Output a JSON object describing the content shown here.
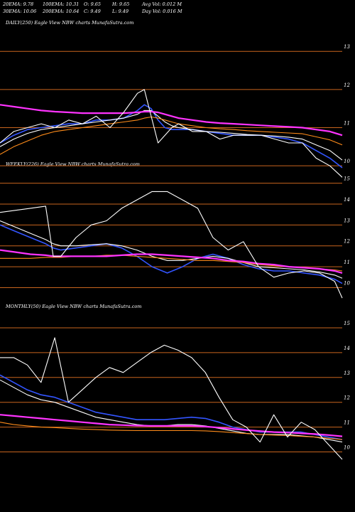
{
  "header": {
    "ema20": "20EMA: 9.78",
    "ema100": "100EMA: 10.31",
    "open": "O: 9.65",
    "high": "H: 9.65",
    "avgvol": "Avg Vol: 0.012  M",
    "ema30": "30EMA: 10.06",
    "ema200": "200EMA: 10.64",
    "close": "C: 9.49",
    "low": "L: 9.49",
    "dayvol": "Day Vol: 0.016  M"
  },
  "colors": {
    "background": "#000000",
    "price": "#ffffff",
    "ema_blue": "#3355ff",
    "ema_magenta": "#ff33ff",
    "ema_orange": "#ff8c1a",
    "gridline": "#c8641e"
  },
  "chart_data": [
    {
      "type": "line",
      "title": "DAILY(250) Eagle  View  NBW charts MunafaSutra.com",
      "yticks": [
        "13",
        "12",
        "11",
        "10"
      ],
      "ylim": [
        9.5,
        13.6
      ],
      "x": [
        0,
        10,
        20,
        30,
        40,
        50,
        60,
        70,
        80,
        90,
        100,
        105,
        110,
        115,
        120,
        125,
        130,
        140,
        150,
        160,
        170,
        180,
        190,
        200,
        210,
        220,
        230,
        240,
        249
      ],
      "series": [
        {
          "name": "price",
          "color": "#ffffff",
          "values": [
            10.6,
            10.9,
            11.0,
            11.1,
            11.0,
            11.2,
            11.1,
            11.3,
            11.0,
            11.4,
            11.9,
            12.0,
            11.3,
            10.6,
            10.8,
            11.0,
            11.1,
            10.9,
            10.9,
            10.7,
            10.8,
            10.8,
            10.8,
            10.7,
            10.6,
            10.6,
            10.2,
            10.0,
            9.7
          ]
        },
        {
          "name": "",
          "color": "#3355ff",
          "values": [
            10.6,
            10.8,
            10.95,
            11.0,
            11.05,
            11.1,
            11.1,
            11.2,
            11.2,
            11.25,
            11.45,
            11.6,
            11.5,
            11.2,
            11.0,
            10.95,
            10.95,
            10.95,
            10.9,
            10.85,
            10.8,
            10.8,
            10.8,
            10.75,
            10.7,
            10.6,
            10.4,
            10.2,
            9.95
          ]
        },
        {
          "name": "",
          "color": "#ffffff",
          "values": [
            10.5,
            10.7,
            10.85,
            10.95,
            11.0,
            11.05,
            11.1,
            11.15,
            11.2,
            11.25,
            11.35,
            11.45,
            11.45,
            11.3,
            11.15,
            11.05,
            11.0,
            10.95,
            10.9,
            10.88,
            10.85,
            10.82,
            10.8,
            10.78,
            10.75,
            10.7,
            10.55,
            10.4,
            10.15
          ]
        },
        {
          "name": "",
          "color": "#ff8c1a",
          "values": [
            10.3,
            10.5,
            10.65,
            10.8,
            10.9,
            10.95,
            11.0,
            11.05,
            11.1,
            11.15,
            11.2,
            11.25,
            11.28,
            11.25,
            11.2,
            11.15,
            11.1,
            11.05,
            11.0,
            10.97,
            10.95,
            10.92,
            10.9,
            10.88,
            10.86,
            10.84,
            10.76,
            10.68,
            10.55
          ]
        },
        {
          "name": "",
          "color": "#ff33ff",
          "values": [
            11.6,
            11.55,
            11.5,
            11.45,
            11.42,
            11.4,
            11.38,
            11.38,
            11.38,
            11.38,
            11.4,
            11.42,
            11.42,
            11.4,
            11.35,
            11.3,
            11.25,
            11.2,
            11.15,
            11.12,
            11.1,
            11.08,
            11.06,
            11.04,
            11.02,
            11.0,
            10.95,
            10.9,
            10.8
          ]
        }
      ]
    },
    {
      "type": "line",
      "title": "WEEKLY(226) Eagle  View  NBW charts MunafaSutra.com",
      "yticks": [
        "15",
        "14",
        "13",
        "12",
        "11",
        "10"
      ],
      "ylim": [
        9.3,
        15.6
      ],
      "x": [
        0,
        10,
        20,
        30,
        35,
        40,
        50,
        60,
        70,
        80,
        90,
        100,
        110,
        120,
        130,
        140,
        150,
        160,
        170,
        180,
        190,
        200,
        210,
        220,
        225
      ],
      "series": [
        {
          "name": "price",
          "color": "#ffffff",
          "values": [
            13.6,
            13.7,
            13.8,
            13.9,
            11.5,
            11.5,
            12.4,
            13.0,
            13.2,
            13.8,
            14.2,
            14.6,
            14.6,
            14.2,
            13.8,
            12.4,
            11.8,
            12.2,
            11.0,
            10.5,
            10.7,
            10.8,
            10.7,
            10.3,
            9.5
          ]
        },
        {
          "name": "",
          "color": "#3355ff",
          "values": [
            13.0,
            12.7,
            12.4,
            12.1,
            11.9,
            11.8,
            11.9,
            12.0,
            12.1,
            11.9,
            11.5,
            11.0,
            10.7,
            11.0,
            11.4,
            11.6,
            11.4,
            11.1,
            10.9,
            10.8,
            10.8,
            10.7,
            10.6,
            10.4,
            10.2
          ]
        },
        {
          "name": "",
          "color": "#ffffff",
          "values": [
            13.2,
            12.9,
            12.6,
            12.3,
            12.1,
            12.0,
            12.0,
            12.05,
            12.1,
            12.0,
            11.8,
            11.5,
            11.3,
            11.3,
            11.4,
            11.5,
            11.4,
            11.2,
            11.0,
            10.95,
            10.9,
            10.85,
            10.75,
            10.6,
            10.45
          ]
        },
        {
          "name": "",
          "color": "#ff8c1a",
          "values": [
            11.4,
            11.4,
            11.4,
            11.45,
            11.45,
            11.45,
            11.5,
            11.5,
            11.55,
            11.55,
            11.5,
            11.45,
            11.4,
            11.35,
            11.3,
            11.3,
            11.25,
            11.2,
            11.1,
            11.05,
            11.0,
            10.95,
            10.9,
            10.85,
            10.8
          ]
        },
        {
          "name": "",
          "color": "#ff33ff",
          "values": [
            11.8,
            11.7,
            11.6,
            11.55,
            11.5,
            11.5,
            11.5,
            11.5,
            11.5,
            11.55,
            11.6,
            11.6,
            11.55,
            11.5,
            11.45,
            11.4,
            11.3,
            11.25,
            11.15,
            11.1,
            11.0,
            10.95,
            10.9,
            10.8,
            10.7
          ]
        }
      ]
    },
    {
      "type": "line",
      "title": "MONTHLY(50) Eagle  View  NBW charts MunafaSutra.com",
      "yticks": [
        "15",
        "14",
        "13",
        "12",
        "11",
        "10"
      ],
      "ylim": [
        9.3,
        15.6
      ],
      "x": [
        0,
        2,
        4,
        6,
        8,
        10,
        12,
        14,
        16,
        18,
        20,
        22,
        24,
        26,
        28,
        30,
        32,
        34,
        36,
        38,
        40,
        42,
        44,
        46,
        48,
        50
      ],
      "series": [
        {
          "name": "price",
          "color": "#ffffff",
          "values": [
            13.8,
            13.8,
            13.5,
            12.8,
            14.6,
            12.0,
            12.5,
            13.0,
            13.4,
            13.2,
            13.6,
            14.0,
            14.3,
            14.1,
            13.8,
            13.2,
            12.2,
            11.3,
            11.0,
            10.4,
            11.5,
            10.6,
            11.2,
            10.9,
            10.3,
            9.7
          ]
        },
        {
          "name": "",
          "color": "#3355ff",
          "values": [
            13.1,
            12.8,
            12.5,
            12.3,
            12.2,
            12.0,
            11.8,
            11.6,
            11.5,
            11.4,
            11.3,
            11.3,
            11.3,
            11.35,
            11.4,
            11.35,
            11.2,
            11.0,
            10.9,
            10.8,
            10.8,
            10.8,
            10.8,
            10.7,
            10.6,
            10.5
          ]
        },
        {
          "name": "",
          "color": "#ffffff",
          "values": [
            12.9,
            12.6,
            12.3,
            12.1,
            12.0,
            11.8,
            11.6,
            11.4,
            11.3,
            11.2,
            11.1,
            11.05,
            11.05,
            11.1,
            11.1,
            11.05,
            10.95,
            10.85,
            10.75,
            10.7,
            10.7,
            10.7,
            10.65,
            10.6,
            10.5,
            10.4
          ]
        },
        {
          "name": "",
          "color": "#ff8c1a",
          "values": [
            11.2,
            11.1,
            11.05,
            11.0,
            10.98,
            10.95,
            10.92,
            10.9,
            10.88,
            10.87,
            10.86,
            10.86,
            10.86,
            10.86,
            10.86,
            10.85,
            10.82,
            10.78,
            10.74,
            10.7,
            10.68,
            10.66,
            10.63,
            10.6,
            10.55,
            10.5
          ]
        },
        {
          "name": "",
          "color": "#ff33ff",
          "values": [
            11.5,
            11.45,
            11.4,
            11.35,
            11.3,
            11.25,
            11.2,
            11.15,
            11.1,
            11.08,
            11.06,
            11.05,
            11.05,
            11.05,
            11.05,
            11.02,
            10.98,
            10.93,
            10.88,
            10.84,
            10.8,
            10.78,
            10.75,
            10.72,
            10.68,
            10.63
          ]
        }
      ]
    }
  ]
}
